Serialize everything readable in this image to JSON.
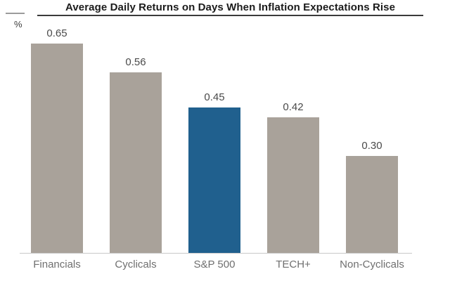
{
  "title": "Average Daily Returns on Days When Inflation Expectations Rise",
  "y_axis_unit": "%",
  "colors": {
    "bar_default": "#a9a29a",
    "bar_highlight": "#20608e",
    "baseline": "#c9c9c9",
    "title_underline": "#3a3a3a",
    "value_text": "#4a4a4a",
    "category_text": "#6f6f6f"
  },
  "chart_data": {
    "type": "bar",
    "title": "Average Daily Returns on Days When Inflation Expectations Rise",
    "xlabel": "",
    "ylabel": "%",
    "categories": [
      "Financials",
      "Cyclicals",
      "S&P 500",
      "TECH+",
      "Non-Cyclicals"
    ],
    "values": [
      0.65,
      0.56,
      0.45,
      0.42,
      0.3
    ],
    "value_labels": [
      "0.65",
      "0.56",
      "0.45",
      "0.42",
      "0.30"
    ],
    "highlight_category": "S&P 500",
    "highlight_index": 2,
    "ylim": [
      0,
      0.72
    ],
    "grid": false,
    "legend": "none"
  }
}
